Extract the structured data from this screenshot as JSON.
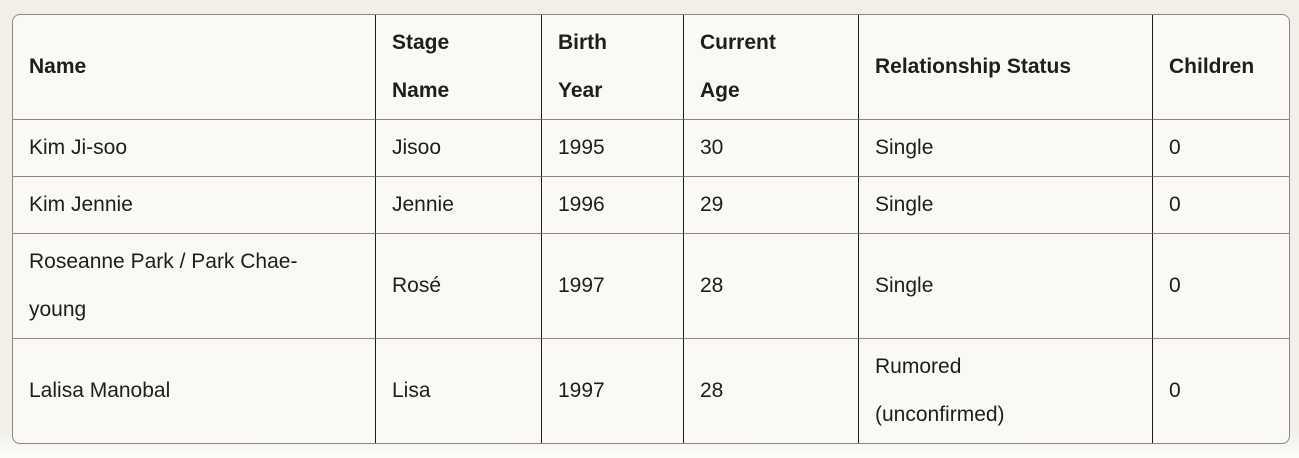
{
  "table": {
    "headers": [
      "Name",
      "Stage Name",
      "Birth Year",
      "Current Age",
      "Relationship Status",
      "Children"
    ],
    "rows": [
      [
        "Kim Ji-soo",
        "Jisoo",
        "1995",
        "30",
        "Single",
        "0"
      ],
      [
        "Kim Jennie",
        "Jennie",
        "1996",
        "29",
        "Single",
        "0"
      ],
      [
        "Roseanne Park / Park Chae-young",
        "Rosé",
        "1997",
        "28",
        "Single",
        "0"
      ],
      [
        "Lalisa Manobal",
        "Lisa",
        "1997",
        "28",
        "Rumored (unconfirmed)",
        "0"
      ]
    ]
  },
  "colors": {
    "page_background": "#f1efe8",
    "cell_background": "#faf9f5",
    "text": "#1f1e1d",
    "column_border": "#1f1e1d",
    "row_border": "#8a887f"
  }
}
